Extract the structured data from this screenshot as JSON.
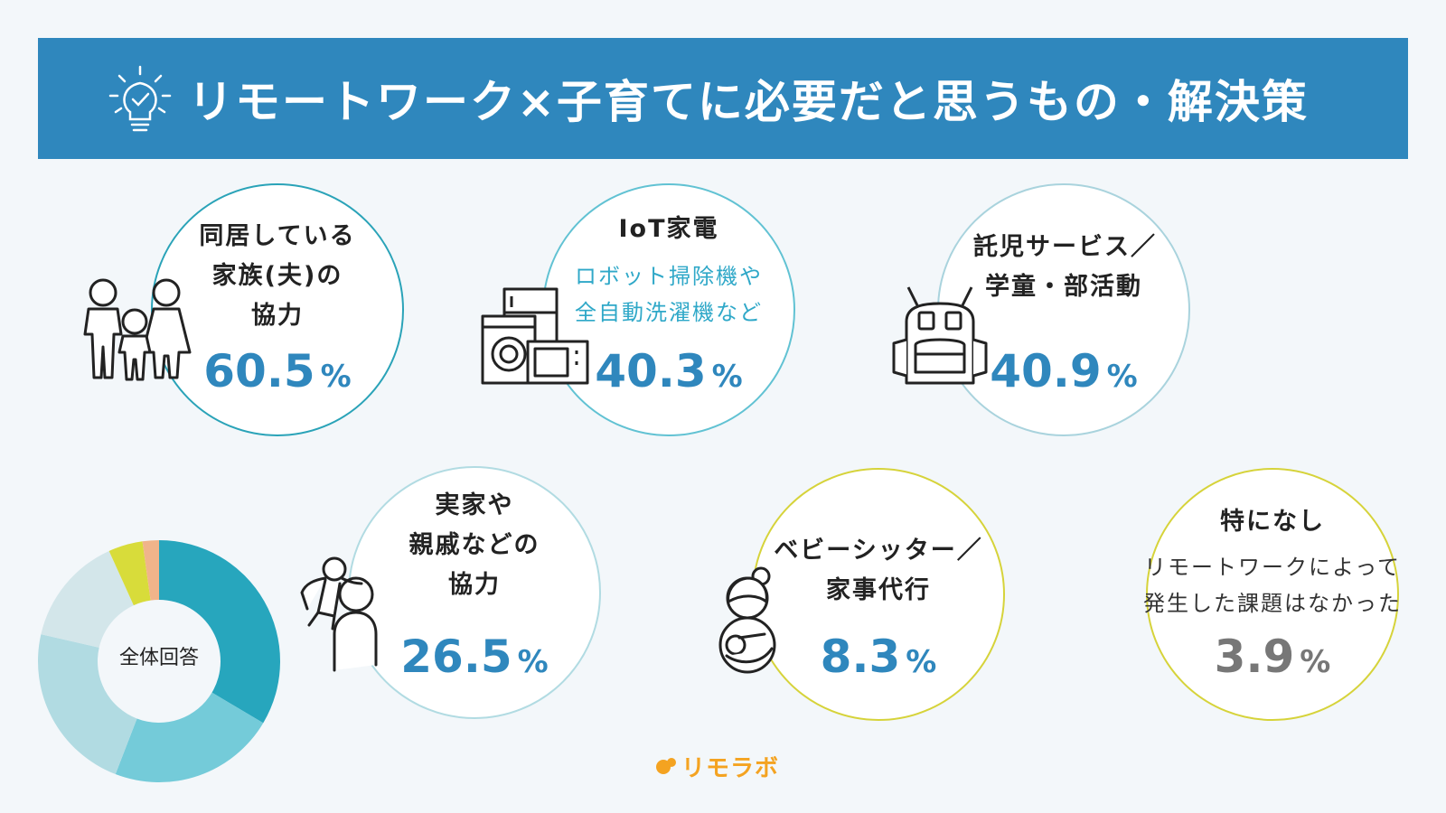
{
  "title": "リモートワーク×子育てに必要だと思うもの・解決策",
  "items": [
    {
      "label_lines": [
        "同居している",
        "家族(夫)の",
        "協力"
      ],
      "value": "60.5",
      "unit": "%",
      "icon": "family-icon"
    },
    {
      "label_lines": [
        "IoT家電"
      ],
      "sub_lines": [
        "ロボット掃除機や",
        "全自動洗濯機など"
      ],
      "value": "40.3",
      "unit": "%",
      "icon": "appliances-icon"
    },
    {
      "label_lines": [
        "託児サービス／",
        "学童・部活動"
      ],
      "value": "40.9",
      "unit": "%",
      "icon": "backpack-icon"
    },
    {
      "label_lines": [
        "実家や",
        "親戚などの",
        "協力"
      ],
      "value": "26.5",
      "unit": "%",
      "icon": "parent-child-icon"
    },
    {
      "label_lines": [
        "ベビーシッター／",
        "家事代行"
      ],
      "value": "8.3",
      "unit": "%",
      "icon": "babysitter-icon"
    },
    {
      "label_lines": [
        "特になし"
      ],
      "sub_lines": [
        "リモートワークによって",
        "発生した課題はなかった"
      ],
      "value": "3.9",
      "unit": "%",
      "icon": ""
    }
  ],
  "colors": {
    "banner": "#2f87bd",
    "teal": "#2aa3b8",
    "light": "#a9d3dd",
    "yellow": "#d6d33a",
    "value": "#2f87bd",
    "gray_value": "#777777",
    "logo": "#f4a321"
  },
  "donut": {
    "center_label": "全体回答",
    "segments": [
      {
        "value": 36.6,
        "color": "#27a6bd"
      },
      {
        "value": 24.4,
        "color": "#74cbd9"
      },
      {
        "value": 24.8,
        "color": "#b1dbe2"
      },
      {
        "value": 16.0,
        "color": "#d3e6ea"
      },
      {
        "value": 5.0,
        "color": "#d8dc3a"
      },
      {
        "value": 2.4,
        "color": "#f0b48a"
      }
    ]
  },
  "logo_text": "リモラボ"
}
